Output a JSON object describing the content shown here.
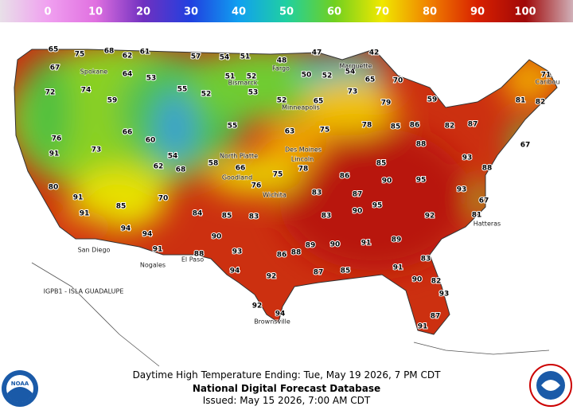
{
  "legend": {
    "range": [
      -10,
      110
    ],
    "ticks": [
      0,
      10,
      20,
      30,
      40,
      50,
      60,
      70,
      80,
      90,
      100
    ],
    "colors": [
      "#e8e0e8",
      "#f0a0f0",
      "#e070e0",
      "#7030c0",
      "#2040e0",
      "#10a0f0",
      "#20d0a0",
      "#70d020",
      "#f0e800",
      "#f08000",
      "#d82000",
      "#a00808",
      "#d0b0b8"
    ]
  },
  "map": {
    "temperatures": [
      65,
      75,
      68,
      62,
      61,
      57,
      54,
      51,
      48,
      47,
      42,
      67,
      72,
      64,
      53,
      51,
      52,
      50,
      52,
      54,
      65,
      70,
      71,
      74,
      59,
      55,
      52,
      53,
      52,
      65,
      73,
      79,
      59,
      76,
      66,
      60,
      54,
      55,
      63,
      75,
      78,
      85,
      86,
      82,
      87,
      81,
      82,
      91,
      73,
      62,
      68,
      58,
      66,
      75,
      78,
      86,
      85,
      88,
      93,
      88,
      67,
      80,
      91,
      70,
      76,
      83,
      87,
      90,
      95,
      93,
      67,
      91,
      85,
      84,
      85,
      83,
      83,
      90,
      95,
      92,
      81,
      94,
      94,
      90,
      93,
      88,
      89,
      90,
      91,
      89,
      83,
      88,
      91,
      94,
      86,
      92,
      87,
      85,
      91,
      90,
      82,
      93,
      87,
      91,
      94,
      92
    ],
    "cities": [
      "Spokane",
      "Bismarck",
      "Fargo",
      "Minneapolis",
      "Des Moines",
      "Lincoln",
      "Wichita",
      "Goodland",
      "North Platte",
      "Marquette",
      "Caribou",
      "San Diego",
      "Nogales",
      "El Paso",
      "Brownsville",
      "Hatteras",
      "IGPB1 - ISLA GUADALUPE"
    ]
  },
  "footer": {
    "line1": "Daytime High Temperature Ending: Tue, May 19 2026, 7 PM CDT",
    "line2": "National Digital Forecast Database",
    "line3": "Issued: May 15 2026, 7:00 AM CDT",
    "noaa": "NOAA"
  }
}
